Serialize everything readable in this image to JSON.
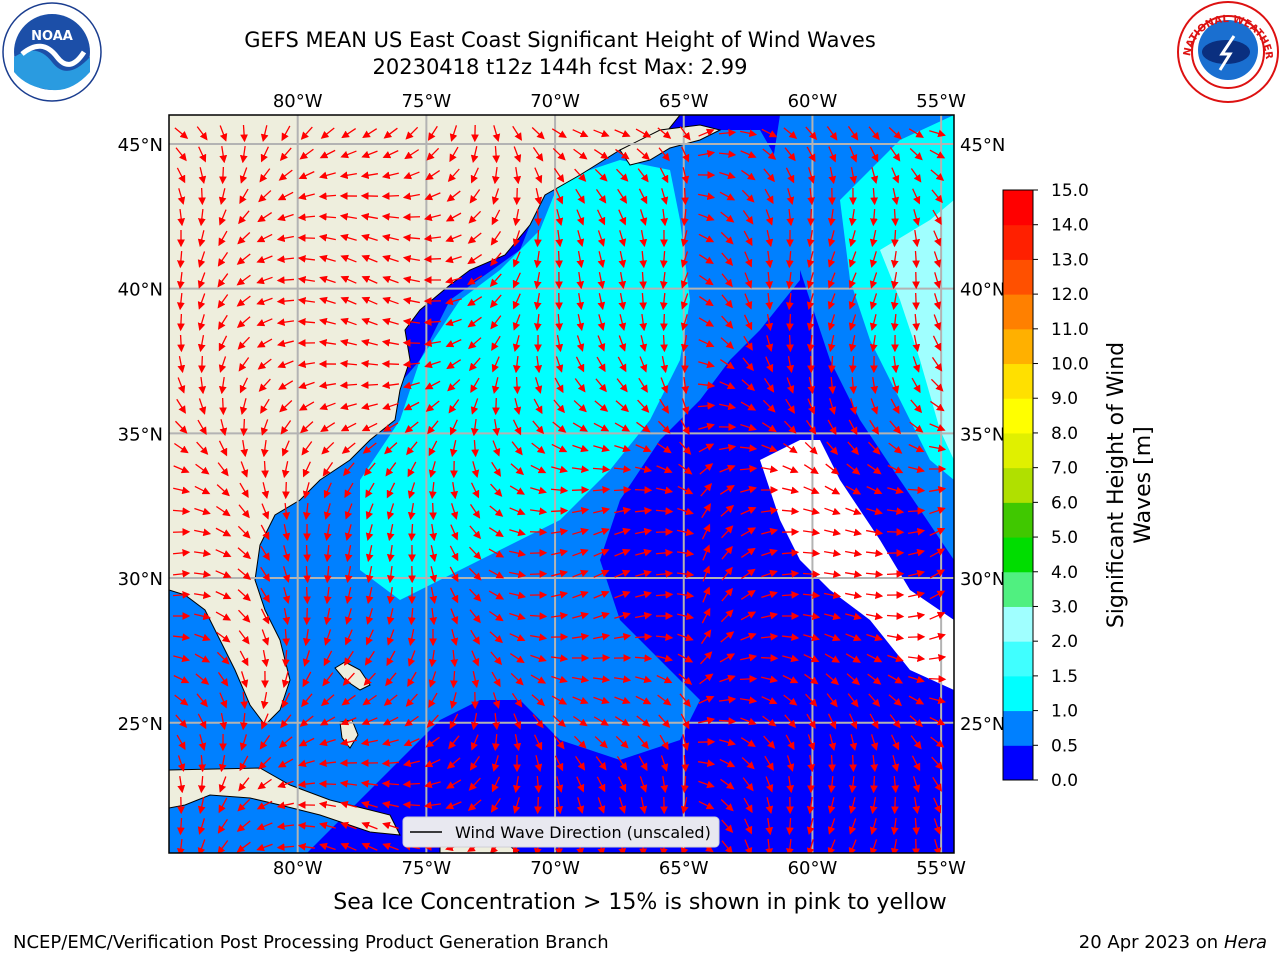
{
  "header": {
    "title_line1": "GEFS MEAN US East Coast Significant Height of Wind Waves",
    "title_line2": "20230418 t12z 144h fcst   Max: 2.99"
  },
  "logos": {
    "left": {
      "name": "noaa-logo",
      "text": "NOAA"
    },
    "right": {
      "name": "nws-logo",
      "text": "NATIONAL WEATHER SERVICE"
    }
  },
  "map": {
    "lon_ticks": [
      "80°W",
      "75°W",
      "70°W",
      "65°W",
      "60°W",
      "55°W"
    ],
    "lat_ticks": [
      "45°N",
      "40°N",
      "35°N",
      "30°N",
      "25°N"
    ],
    "lon_range": [
      -85,
      -54.5
    ],
    "lat_range": [
      20.5,
      46
    ],
    "legend_label": "Wind Wave Direction (unscaled)",
    "colors": {
      "land": "#eeeedd",
      "arrow": "#ff0000",
      "grid": "#b3b3b3"
    }
  },
  "colorbar": {
    "label": "Significant Height of Wind Waves [m]",
    "label_line1": "Significant Height of Wind",
    "label_line2": "Waves [m]",
    "ticks": [
      "0.0",
      "0.5",
      "1.0",
      "1.5",
      "2.0",
      "3.0",
      "4.0",
      "5.0",
      "6.0",
      "7.0",
      "8.0",
      "9.0",
      "10.0",
      "11.0",
      "12.0",
      "13.0",
      "14.0",
      "15.0"
    ],
    "colors": [
      "#0000ff",
      "#0080ff",
      "#00ffff",
      "#40ffff",
      "#a0ffff",
      "#50f080",
      "#00dd00",
      "#40c800",
      "#b0e000",
      "#e0f000",
      "#ffff00",
      "#ffe000",
      "#ffb000",
      "#ff8000",
      "#ff5000",
      "#ff2000",
      "#ff0000"
    ]
  },
  "caption": "Sea Ice Concentration > 15% is shown in pink to yellow",
  "footer": {
    "left": "NCEP/EMC/Verification Post Processing Product Generation Branch",
    "right_date": "20 Apr 2023 on ",
    "right_machine": "Hera"
  }
}
